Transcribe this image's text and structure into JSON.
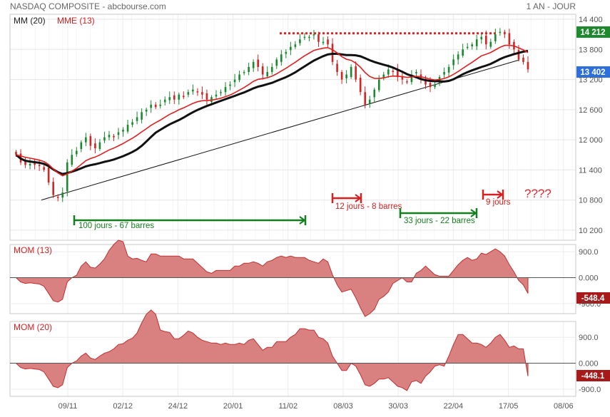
{
  "header": {
    "title": "NASDAQ COMPOSITE - abcbourse.com",
    "period": "1 AN - JOUR"
  },
  "chart_data": [
    {
      "type": "candlestick",
      "legend": [
        "MM (20)",
        "MME (13)"
      ],
      "x_ticks": [
        "09/11",
        "02/12",
        "24/12",
        "20/01",
        "11/02",
        "08/03",
        "30/03",
        "22/04",
        "17/05",
        "08/06"
      ],
      "y_ticks": [
        "14 400",
        "13 800",
        "13 200",
        "12 600",
        "12 000",
        "11 400",
        "10 800",
        "10 200"
      ],
      "ylim": [
        10000,
        14500
      ],
      "price_badges": [
        {
          "value": "14 212",
          "color": "#1e8a2e"
        },
        {
          "value": "13 402",
          "color": "#2f6fdc"
        }
      ],
      "resistance_level": 14120,
      "trendline": {
        "from": [
          "2020-10-30",
          10800
        ],
        "to": [
          "2021-05-19",
          13450
        ]
      },
      "closes": [
        11700,
        11550,
        11500,
        11520,
        11500,
        11480,
        11400,
        11150,
        10900,
        10850,
        10950,
        11550,
        11700,
        11780,
        11950,
        12050,
        11880,
        11830,
        11950,
        12050,
        12100,
        12050,
        12150,
        12200,
        12300,
        12350,
        12450,
        12550,
        12600,
        12700,
        12650,
        12700,
        12800,
        12850,
        12800,
        12900,
        12850,
        12950,
        13000,
        12950,
        12900,
        12800,
        12850,
        12900,
        12950,
        13050,
        13100,
        13200,
        13300,
        13350,
        13450,
        13550,
        13450,
        13300,
        13350,
        13450,
        13600,
        13700,
        13750,
        13850,
        13900,
        14000,
        14050,
        14050,
        14100,
        13950,
        13950,
        13900,
        13550,
        13350,
        13200,
        13300,
        13450,
        13200,
        12950,
        12700,
        12800,
        13000,
        13200,
        13300,
        13400,
        13350,
        13250,
        13200,
        13150,
        13300,
        13350,
        13200,
        13100,
        13050,
        13100,
        13250,
        13350,
        13450,
        13600,
        13700,
        13800,
        13850,
        13900,
        14000,
        14050,
        13900,
        13950,
        14100,
        14150,
        14100,
        13900,
        13800,
        13600,
        13550,
        13402
      ],
      "annotations": [
        {
          "text": "100 jours - 67 barres",
          "color": "#157f1f"
        },
        {
          "text": "12 jours - 8 barres",
          "color": "#d62020"
        },
        {
          "text": "33 jours - 22 barres",
          "color": "#157f1f"
        },
        {
          "text": "9 jours",
          "color": "#d62020"
        },
        {
          "text": "????",
          "color": "#e8262a"
        }
      ]
    },
    {
      "type": "area",
      "title": "MOM (13)",
      "y_ticks": [
        "900.0",
        "0.000",
        "-900.0"
      ],
      "ylim": [
        -1250,
        1150
      ],
      "badge": "-548.4",
      "last_value": -548.4
    },
    {
      "type": "area",
      "title": "MOM (20)",
      "y_ticks": [
        "900.0",
        "0.000",
        "-900.0"
      ],
      "ylim": [
        -1150,
        1450
      ],
      "badge": "-448.1",
      "last_value": -448.1
    }
  ]
}
